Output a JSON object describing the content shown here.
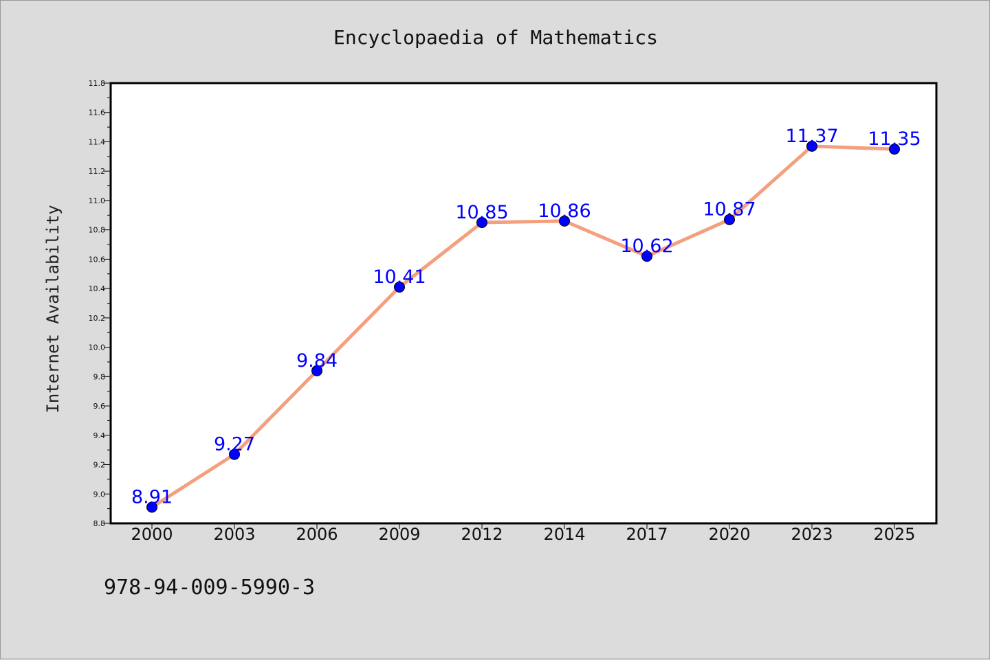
{
  "chart_data": {
    "type": "line",
    "title": "Encyclopaedia of Mathematics",
    "xlabel": "",
    "ylabel": "Internet Availability",
    "categories": [
      "2000",
      "2003",
      "2006",
      "2009",
      "2012",
      "2014",
      "2017",
      "2020",
      "2023",
      "2025"
    ],
    "series": [
      {
        "values": [
          8.91,
          9.27,
          9.84,
          10.41,
          10.85,
          10.86,
          10.62,
          10.87,
          11.37,
          11.35
        ]
      }
    ],
    "data_labels": [
      "8.91",
      "9.27",
      "9.84",
      "10.41",
      "10.85",
      "10.86",
      "10.62",
      "10.87",
      "11.37",
      "11.35"
    ],
    "ylim": [
      8.8,
      11.8
    ],
    "yticks": [
      "8.8",
      "9.0",
      "9.2",
      "9.4",
      "9.6",
      "9.8",
      "10.0",
      "10.2",
      "10.4",
      "10.6",
      "10.8",
      "11.0",
      "11.2",
      "11.4",
      "11.6",
      "11.8"
    ],
    "grid": false,
    "legend": "none",
    "colors": {
      "line": "#f4a07e",
      "marker": "#0000ff",
      "label": "#0000ff",
      "background": "#dcdcdc",
      "plot_area": "#ffffff"
    }
  },
  "footnote": "978-94-009-5990-3"
}
